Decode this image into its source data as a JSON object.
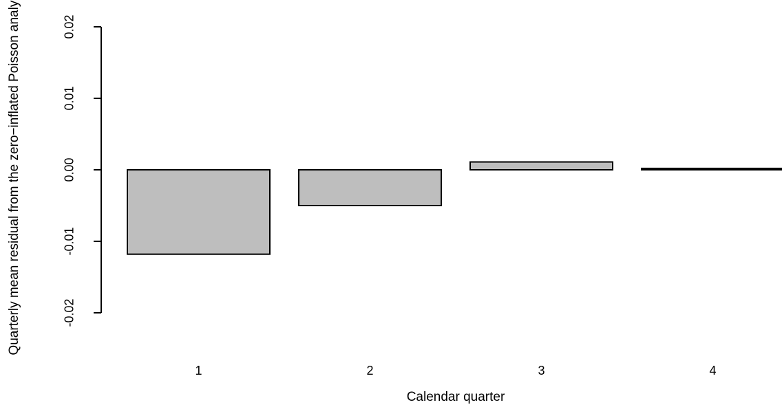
{
  "chart_data": {
    "type": "bar",
    "categories": [
      "1",
      "2",
      "3",
      "4"
    ],
    "values": [
      -0.0118,
      -0.005,
      0.0011,
      0.0002
    ],
    "title": "",
    "xlabel": "Calendar quarter",
    "ylabel": "Quarterly mean residual from the zero−inflated Poisson analysis",
    "ylim": [
      -0.02,
      0.02
    ],
    "yticks": [
      -0.02,
      -0.01,
      0.0,
      0.01,
      0.02
    ],
    "ytick_labels": [
      "-0.02",
      "-0.01",
      "0.00",
      "0.01",
      "0.02"
    ],
    "grid": false,
    "legend": "none",
    "bar_color": "#bebebe",
    "bar_edge_color": "#000000"
  }
}
